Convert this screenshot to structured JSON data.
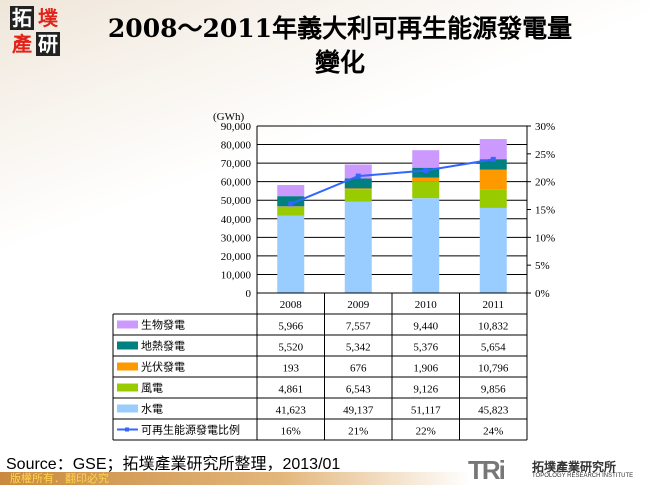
{
  "logo": {
    "chars": [
      "拓",
      "墣",
      "產",
      "研"
    ]
  },
  "title": "2008～2011年義大利可再生能源發電量變化",
  "source": "Source：GSE；拓墣產業研究所整理，2013/01",
  "copyright": "版權所有．翻印必究",
  "brand": {
    "mark": "TRi",
    "name_zh": "拓墣產業研究所",
    "name_en": "TOPOLOGY RESEARCH INSTITUTE"
  },
  "chart_data": {
    "type": "bar",
    "stacked": true,
    "title": "2008～2011年義大利可再生能源發電量變化",
    "ylabel": "(GWh)",
    "ylim": [
      0,
      90000
    ],
    "y_ticks": [
      "0",
      "10,000",
      "20,000",
      "30,000",
      "40,000",
      "50,000",
      "60,000",
      "70,000",
      "80,000",
      "90,000"
    ],
    "y2lim": [
      0,
      30
    ],
    "y2_ticks": [
      "0%",
      "5%",
      "10%",
      "15%",
      "20%",
      "25%",
      "30%"
    ],
    "grid": true,
    "legend": "data-table",
    "categories": [
      "2008",
      "2009",
      "2010",
      "2011"
    ],
    "series": [
      {
        "name": "水電",
        "color": "#99ccff",
        "values": [
          41623,
          49137,
          51117,
          45823
        ],
        "labels": [
          "41,623",
          "49,137",
          "51,117",
          "45,823"
        ]
      },
      {
        "name": "風電",
        "color": "#99cc00",
        "values": [
          4861,
          6543,
          9126,
          9856
        ],
        "labels": [
          "4,861",
          "6,543",
          "9,126",
          "9,856"
        ]
      },
      {
        "name": "光伏發電",
        "color": "#ff9900",
        "values": [
          193,
          676,
          1906,
          10796
        ],
        "labels": [
          "193",
          "676",
          "1,906",
          "10,796"
        ]
      },
      {
        "name": "地熱發電",
        "color": "#008080",
        "values": [
          5520,
          5342,
          5376,
          5654
        ],
        "labels": [
          "5,520",
          "5,342",
          "5,376",
          "5,654"
        ]
      },
      {
        "name": "生物發電",
        "color": "#cc99ff",
        "values": [
          5966,
          7557,
          9440,
          10832
        ],
        "labels": [
          "5,966",
          "7,557",
          "9,440",
          "10,832"
        ]
      }
    ],
    "line_series": {
      "name": "可再生能源發電比例",
      "color": "#3366ff",
      "axis": "right",
      "values": [
        16,
        21,
        22,
        24
      ],
      "labels": [
        "16%",
        "21%",
        "22%",
        "24%"
      ]
    }
  }
}
